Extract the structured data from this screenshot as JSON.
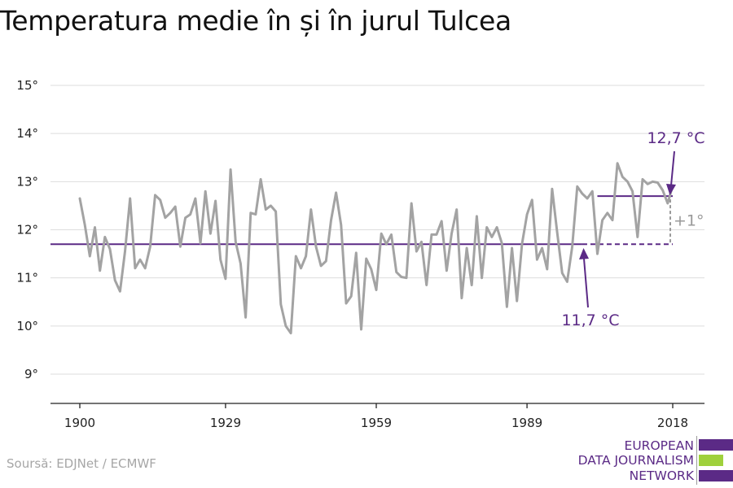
{
  "title": "Temperatura medie în și în jurul Tulcea",
  "source": "Soursă: EDJNet / ECMWF",
  "logo": {
    "lines": [
      "EUROPEAN",
      "DATA JOURNALISM",
      "NETWORK"
    ],
    "colors": {
      "purple": "#5b2a86",
      "green": "#9fd13c"
    }
  },
  "colors": {
    "series": "#a3a3a3",
    "reference": "#5b2a86",
    "annotation_gray": "#9a9a9a",
    "grid": "#dddddd"
  },
  "chart_data": {
    "type": "line",
    "title": "Temperatura medie în și în jurul Tulcea",
    "xlabel": "",
    "ylabel": "",
    "xlim": [
      1900,
      2018
    ],
    "ylim": [
      9,
      15
    ],
    "x_ticks": [
      1900,
      1929,
      1959,
      1989,
      2018
    ],
    "x_tick_labels": [
      "1900",
      "1929",
      "1959",
      "1989",
      "2018"
    ],
    "y_ticks": [
      9,
      10,
      11,
      12,
      13,
      14,
      15
    ],
    "y_tick_labels": [
      "9°",
      "10°",
      "11°",
      "12°",
      "13°",
      "14°",
      "15°"
    ],
    "grid": "horizontal",
    "series": [
      {
        "x": [
          1900,
          1901,
          1902,
          1903,
          1904,
          1905,
          1906,
          1907,
          1908,
          1909,
          1910,
          1911,
          1912,
          1913,
          1914,
          1915,
          1916,
          1917,
          1918,
          1919,
          1920,
          1921,
          1922,
          1923,
          1924,
          1925,
          1926,
          1927,
          1928,
          1929,
          1930,
          1931,
          1932,
          1933,
          1934,
          1935,
          1936,
          1937,
          1938,
          1939,
          1940,
          1941,
          1942,
          1943,
          1944,
          1945,
          1946,
          1947,
          1948,
          1949,
          1950,
          1951,
          1952,
          1953,
          1954,
          1955,
          1956,
          1957,
          1958,
          1959,
          1960,
          1961,
          1962,
          1963,
          1964,
          1965,
          1966,
          1967,
          1968,
          1969,
          1970,
          1971,
          1972,
          1973,
          1974,
          1975,
          1976,
          1977,
          1978,
          1979,
          1980,
          1981,
          1982,
          1983,
          1984,
          1985,
          1986,
          1987,
          1988,
          1989,
          1990,
          1991,
          1992,
          1993,
          1994,
          1995,
          1996,
          1997,
          1998,
          1999,
          2000,
          2001,
          2002,
          2003,
          2004,
          2005,
          2006,
          2007,
          2008,
          2009,
          2010,
          2011,
          2012,
          2013,
          2014,
          2015,
          2016,
          2017,
          2018
        ],
        "values": [
          12.65,
          12.1,
          11.45,
          12.05,
          11.15,
          11.85,
          11.6,
          10.95,
          10.72,
          11.55,
          12.65,
          11.2,
          11.38,
          11.2,
          11.65,
          12.72,
          12.62,
          12.25,
          12.35,
          12.48,
          11.65,
          12.25,
          12.32,
          12.65,
          11.72,
          12.8,
          11.92,
          12.6,
          11.38,
          10.98,
          13.25,
          11.75,
          11.3,
          10.18,
          12.35,
          12.32,
          13.05,
          12.42,
          12.5,
          12.38,
          10.45,
          10.0,
          9.85,
          11.45,
          11.2,
          11.45,
          12.42,
          11.65,
          11.25,
          11.35,
          12.2,
          12.77,
          12.1,
          10.47,
          10.62,
          11.52,
          9.93,
          11.4,
          11.18,
          10.75,
          11.92,
          11.7,
          11.9,
          11.12,
          11.02,
          11.0,
          12.55,
          11.55,
          11.75,
          10.85,
          11.9,
          11.9,
          12.18,
          11.15,
          11.92,
          12.42,
          10.58,
          11.62,
          10.85,
          12.28,
          11.0,
          12.05,
          11.85,
          12.05,
          11.72,
          10.4,
          11.62,
          10.52,
          11.7,
          12.32,
          12.62,
          11.38,
          11.62,
          11.18,
          12.85,
          11.95,
          11.1,
          10.92,
          11.65,
          12.9,
          12.75,
          12.65,
          12.8,
          11.5,
          12.2,
          12.35,
          12.2,
          13.38,
          13.1,
          13.0,
          12.8,
          11.85,
          13.05,
          12.95,
          13.0,
          12.98,
          12.82,
          12.55,
          12.92
        ]
      }
    ],
    "reference_lines": [
      {
        "label": "11,7 °C",
        "value": 11.7,
        "x_start": 1900,
        "x_end": 2018,
        "dashed_from": 2000
      },
      {
        "label": "12,7 °C",
        "value": 12.7,
        "x_start": 2003,
        "x_end": 2018
      }
    ],
    "annotations": [
      {
        "text": "+1°",
        "x": 2018,
        "from": 11.7,
        "to": 12.7
      },
      {
        "text": "12,7 °C",
        "x": 2018,
        "y": 12.7
      },
      {
        "text": "11,7 °C",
        "x": 2003,
        "y": 11.7
      }
    ]
  }
}
